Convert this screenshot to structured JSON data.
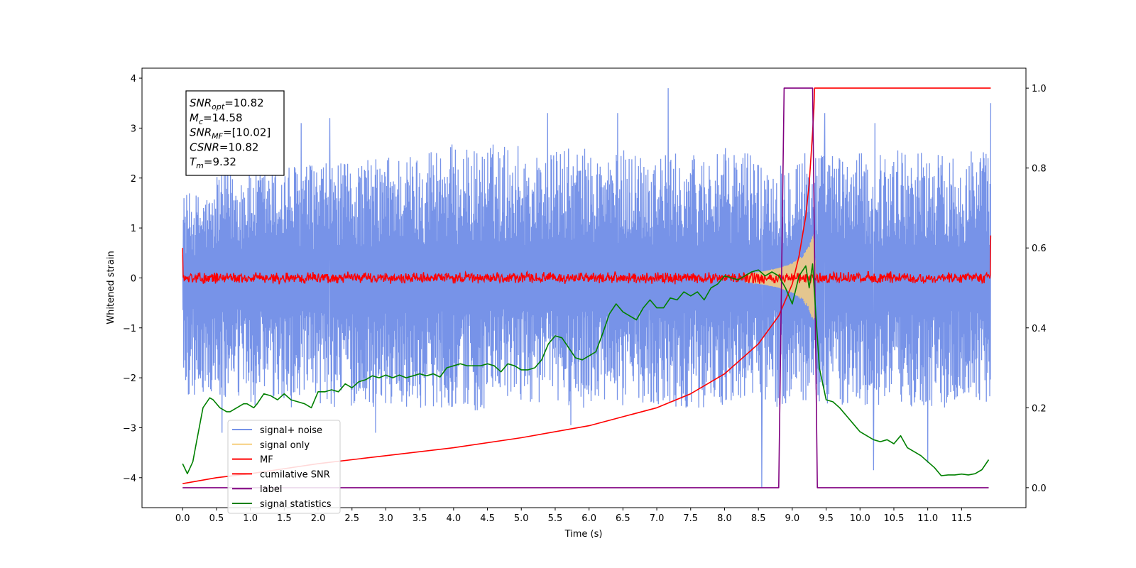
{
  "chart_data": {
    "type": "line",
    "xlabel": "Time (s)",
    "ylabel": "Whitened strain",
    "xlim": [
      -0.6,
      12.45
    ],
    "ylim": [
      -4.6,
      4.2
    ],
    "y2lim": [
      -0.05,
      1.05
    ],
    "x_ticks": [
      "0.0",
      "0.5",
      "1.0",
      "1.5",
      "2.0",
      "2.5",
      "3.0",
      "3.5",
      "4.0",
      "4.5",
      "5.0",
      "5.5",
      "6.0",
      "6.5",
      "7.0",
      "7.5",
      "8.0",
      "8.5",
      "9.0",
      "9.5",
      "10.0",
      "10.5",
      "11.0",
      "11.5"
    ],
    "y_ticks": [
      "4",
      "3",
      "2",
      "1",
      "0",
      "−1",
      "−2",
      "−3",
      "−4"
    ],
    "y2_ticks": [
      "1.0",
      "0.8",
      "0.6",
      "0.4",
      "0.2",
      "0.0"
    ],
    "legend_position": "lower-left",
    "annotation_lines": [
      {
        "sym": "SNR",
        "sub": "opt",
        "val": "=10.82"
      },
      {
        "sym": "M",
        "sub": "c",
        "val": "=14.58"
      },
      {
        "sym": "SNR",
        "sub": "MF",
        "val": "=[10.02]"
      },
      {
        "sym": "CSNR",
        "sub": "",
        "val": "=10.82"
      },
      {
        "sym": "T",
        "sub": "m",
        "val": "=9.32"
      }
    ],
    "series": [
      {
        "name": "signal+ noise",
        "color": "#7793e8",
        "axis": "left",
        "envelope_upper": [
          1.7,
          2.2,
          2.2,
          2.3,
          2.3,
          2.4,
          2.5,
          2.7,
          2.6,
          2.7,
          2.5,
          2.6,
          2.5,
          2.6,
          2.5,
          2.5,
          2.6,
          2.4,
          2.6,
          2.5,
          2.5,
          2.6,
          2.5,
          2.6
        ],
        "envelope_lower": [
          -2.4,
          -2.5,
          -2.6,
          -2.6,
          -2.6,
          -2.6,
          -2.6,
          -2.6,
          -2.7,
          -2.5,
          -2.5,
          -2.6,
          -2.6,
          -2.5,
          -2.6,
          -2.6,
          -2.5,
          -2.6,
          -2.5,
          -2.6,
          -2.6,
          -2.6,
          -2.6,
          -2.5
        ],
        "spikes": [
          [
            2.17,
            3.2
          ],
          [
            7.17,
            3.8
          ],
          [
            5.39,
            3.3
          ],
          [
            1.75,
            3.1
          ],
          [
            6.42,
            3.3
          ],
          [
            11.93,
            3.5
          ],
          [
            9.48,
            3.3
          ],
          [
            10.22,
            3.1
          ],
          [
            8.55,
            -4.2
          ],
          [
            5.73,
            -2.95
          ],
          [
            2.85,
            -3.1
          ],
          [
            10.2,
            -3.85
          ],
          [
            11.0,
            -3.7
          ],
          [
            0.58,
            -3.1
          ]
        ]
      },
      {
        "name": "signal only",
        "color": "#f7cf7f",
        "axis": "left",
        "x": [
          8.3,
          8.6,
          8.8,
          9.0,
          9.15,
          9.25,
          9.3,
          9.32,
          9.35
        ],
        "amplitude": [
          0.08,
          0.14,
          0.2,
          0.3,
          0.45,
          0.65,
          0.85,
          0.9,
          0.0
        ]
      },
      {
        "name": "MF",
        "color": "#ff0000",
        "axis": "left",
        "envelope": 0.13,
        "start_value": 0.6,
        "end_value": 0.85
      },
      {
        "name": "cumilative SNR",
        "color": "#ff0000",
        "axis": "right",
        "x": [
          0.0,
          0.5,
          1.0,
          2.0,
          3.0,
          4.0,
          5.0,
          6.0,
          7.0,
          7.5,
          8.0,
          8.5,
          8.8,
          9.0,
          9.1,
          9.2,
          9.25,
          9.3,
          9.32,
          9.33,
          11.93
        ],
        "values": [
          0.01,
          0.025,
          0.035,
          0.06,
          0.08,
          0.1,
          0.125,
          0.155,
          0.2,
          0.235,
          0.285,
          0.36,
          0.43,
          0.51,
          0.58,
          0.68,
          0.76,
          0.89,
          0.95,
          1.0,
          1.0
        ]
      },
      {
        "name": "label",
        "color": "#800080",
        "axis": "right",
        "x": [
          0.0,
          8.8,
          8.88,
          9.3,
          9.37,
          11.9
        ],
        "values": [
          0.0,
          0.0,
          1.0,
          1.0,
          0.0,
          0.0
        ]
      },
      {
        "name": "signal statistics",
        "color": "#008000",
        "axis": "right",
        "x": [
          0.0,
          0.07,
          0.15,
          0.2,
          0.3,
          0.4,
          0.45,
          0.55,
          0.65,
          0.7,
          0.8,
          0.9,
          0.95,
          1.05,
          1.1,
          1.2,
          1.3,
          1.4,
          1.5,
          1.6,
          1.7,
          1.8,
          1.9,
          2.0,
          2.1,
          2.2,
          2.3,
          2.4,
          2.5,
          2.6,
          2.7,
          2.8,
          2.9,
          3.0,
          3.1,
          3.2,
          3.3,
          3.4,
          3.5,
          3.6,
          3.7,
          3.8,
          3.9,
          4.0,
          4.1,
          4.2,
          4.3,
          4.4,
          4.5,
          4.6,
          4.7,
          4.8,
          4.9,
          5.0,
          5.1,
          5.2,
          5.3,
          5.4,
          5.5,
          5.6,
          5.7,
          5.8,
          5.9,
          6.0,
          6.1,
          6.2,
          6.3,
          6.4,
          6.5,
          6.6,
          6.7,
          6.8,
          6.9,
          7.0,
          7.1,
          7.2,
          7.3,
          7.4,
          7.5,
          7.6,
          7.7,
          7.8,
          7.9,
          8.0,
          8.1,
          8.2,
          8.3,
          8.4,
          8.5,
          8.6,
          8.7,
          8.8,
          8.9,
          9.0,
          9.1,
          9.2,
          9.25,
          9.3,
          9.4,
          9.5,
          9.6,
          9.7,
          9.8,
          9.9,
          10.0,
          10.1,
          10.2,
          10.3,
          10.4,
          10.5,
          10.6,
          10.7,
          10.8,
          10.9,
          11.0,
          11.1,
          11.2,
          11.3,
          11.4,
          11.5,
          11.6,
          11.7,
          11.8,
          11.9
        ],
        "values": [
          0.06,
          0.035,
          0.065,
          0.11,
          0.2,
          0.225,
          0.22,
          0.2,
          0.19,
          0.19,
          0.2,
          0.21,
          0.21,
          0.2,
          0.21,
          0.235,
          0.23,
          0.22,
          0.235,
          0.22,
          0.215,
          0.21,
          0.2,
          0.24,
          0.24,
          0.245,
          0.24,
          0.26,
          0.25,
          0.265,
          0.27,
          0.28,
          0.275,
          0.282,
          0.275,
          0.282,
          0.275,
          0.28,
          0.285,
          0.28,
          0.285,
          0.277,
          0.3,
          0.305,
          0.31,
          0.305,
          0.305,
          0.305,
          0.31,
          0.305,
          0.29,
          0.31,
          0.305,
          0.295,
          0.295,
          0.3,
          0.32,
          0.36,
          0.38,
          0.375,
          0.35,
          0.325,
          0.32,
          0.33,
          0.34,
          0.385,
          0.435,
          0.46,
          0.44,
          0.43,
          0.42,
          0.45,
          0.47,
          0.45,
          0.45,
          0.475,
          0.47,
          0.49,
          0.48,
          0.49,
          0.47,
          0.5,
          0.51,
          0.53,
          0.525,
          0.52,
          0.53,
          0.54,
          0.545,
          0.53,
          0.54,
          0.53,
          0.5,
          0.46,
          0.53,
          0.555,
          0.5,
          0.56,
          0.3,
          0.22,
          0.215,
          0.2,
          0.18,
          0.16,
          0.14,
          0.13,
          0.12,
          0.115,
          0.12,
          0.11,
          0.13,
          0.1,
          0.09,
          0.08,
          0.065,
          0.05,
          0.03,
          0.032,
          0.032,
          0.034,
          0.032,
          0.035,
          0.045,
          0.07
        ]
      }
    ]
  }
}
